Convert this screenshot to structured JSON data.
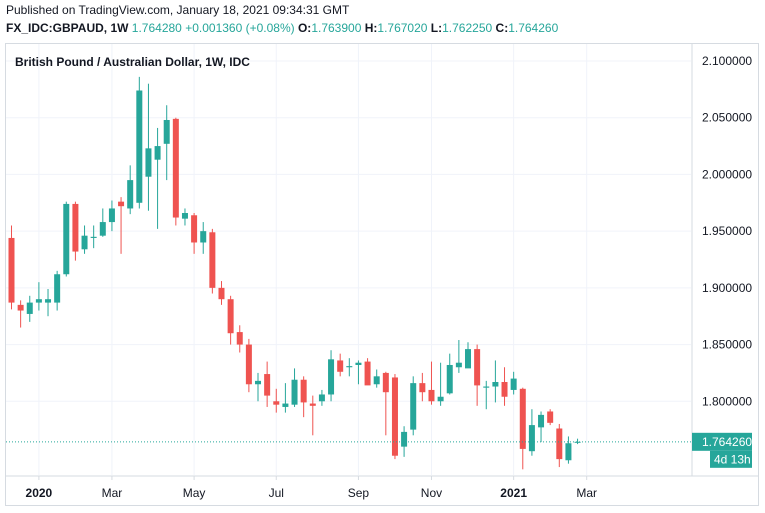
{
  "header": {
    "published": "Published on TradingView.com, January 18, 2021 09:34:31 GMT",
    "symbol": "FX_IDC:GBPAUD, 1W",
    "last": "1.764280",
    "change": "+0.001360 (+0.08%)",
    "open_label": "O:",
    "open": "1.763900",
    "high_label": "H:",
    "high": "1.767020",
    "low_label": "L:",
    "low": "1.762250",
    "close_label": "C:",
    "close": "1.764260"
  },
  "chart_data": {
    "type": "candlestick",
    "title": "British Pound / Australian Dollar, 1W, IDC",
    "ylim": [
      1.735,
      2.115
    ],
    "y_ticks": [
      {
        "v": 2.1,
        "label": "2.100000"
      },
      {
        "v": 2.05,
        "label": "2.050000"
      },
      {
        "v": 2.0,
        "label": "2.000000"
      },
      {
        "v": 1.95,
        "label": "1.950000"
      },
      {
        "v": 1.9,
        "label": "1.900000"
      },
      {
        "v": 1.85,
        "label": "1.850000"
      },
      {
        "v": 1.8,
        "label": "1.800000"
      }
    ],
    "x_ticks": [
      {
        "i": 3,
        "label": "2020",
        "bold": true
      },
      {
        "i": 11,
        "label": "Mar",
        "bold": false
      },
      {
        "i": 20,
        "label": "May",
        "bold": false
      },
      {
        "i": 29,
        "label": "Jul",
        "bold": false
      },
      {
        "i": 38,
        "label": "Sep",
        "bold": false
      },
      {
        "i": 46,
        "label": "Nov",
        "bold": false
      },
      {
        "i": 55,
        "label": "2021",
        "bold": true
      },
      {
        "i": 63,
        "label": "Mar",
        "bold": false
      }
    ],
    "last_price": {
      "value": 1.76426,
      "label": "1.764260",
      "countdown": "4d 13h"
    },
    "colors": {
      "up": "#26a69a",
      "down": "#ef5350",
      "grid": "#f0f3fa"
    },
    "candles": [
      {
        "o": 1.944,
        "h": 1.955,
        "l": 1.881,
        "c": 1.887
      },
      {
        "o": 1.885,
        "h": 1.889,
        "l": 1.865,
        "c": 1.88
      },
      {
        "o": 1.877,
        "h": 1.893,
        "l": 1.87,
        "c": 1.887
      },
      {
        "o": 1.887,
        "h": 1.905,
        "l": 1.88,
        "c": 1.89
      },
      {
        "o": 1.887,
        "h": 1.899,
        "l": 1.875,
        "c": 1.89
      },
      {
        "o": 1.887,
        "h": 1.915,
        "l": 1.88,
        "c": 1.912
      },
      {
        "o": 1.912,
        "h": 1.976,
        "l": 1.91,
        "c": 1.974
      },
      {
        "o": 1.974,
        "h": 1.976,
        "l": 1.924,
        "c": 1.932
      },
      {
        "o": 1.934,
        "h": 1.955,
        "l": 1.93,
        "c": 1.946
      },
      {
        "o": 1.944,
        "h": 1.955,
        "l": 1.935,
        "c": 1.945
      },
      {
        "o": 1.946,
        "h": 1.97,
        "l": 1.945,
        "c": 1.958
      },
      {
        "o": 1.958,
        "h": 1.977,
        "l": 1.95,
        "c": 1.97
      },
      {
        "o": 1.976,
        "h": 1.98,
        "l": 1.93,
        "c": 1.972
      },
      {
        "o": 1.97,
        "h": 2.008,
        "l": 1.965,
        "c": 1.995
      },
      {
        "o": 1.975,
        "h": 2.086,
        "l": 1.97,
        "c": 2.074
      },
      {
        "o": 1.998,
        "h": 2.08,
        "l": 1.968,
        "c": 2.023
      },
      {
        "o": 2.013,
        "h": 2.041,
        "l": 1.952,
        "c": 2.025
      },
      {
        "o": 2.027,
        "h": 2.061,
        "l": 1.995,
        "c": 2.048
      },
      {
        "o": 2.049,
        "h": 2.05,
        "l": 1.955,
        "c": 1.962
      },
      {
        "o": 1.961,
        "h": 1.97,
        "l": 1.955,
        "c": 1.966
      },
      {
        "o": 1.964,
        "h": 1.966,
        "l": 1.93,
        "c": 1.94
      },
      {
        "o": 1.94,
        "h": 1.958,
        "l": 1.93,
        "c": 1.95
      },
      {
        "o": 1.949,
        "h": 1.952,
        "l": 1.895,
        "c": 1.9
      },
      {
        "o": 1.9,
        "h": 1.906,
        "l": 1.885,
        "c": 1.89
      },
      {
        "o": 1.89,
        "h": 1.893,
        "l": 1.85,
        "c": 1.86
      },
      {
        "o": 1.861,
        "h": 1.867,
        "l": 1.843,
        "c": 1.85
      },
      {
        "o": 1.85,
        "h": 1.855,
        "l": 1.808,
        "c": 1.815
      },
      {
        "o": 1.815,
        "h": 1.825,
        "l": 1.8,
        "c": 1.818
      },
      {
        "o": 1.824,
        "h": 1.835,
        "l": 1.795,
        "c": 1.805
      },
      {
        "o": 1.8,
        "h": 1.811,
        "l": 1.79,
        "c": 1.797
      },
      {
        "o": 1.795,
        "h": 1.816,
        "l": 1.79,
        "c": 1.798
      },
      {
        "o": 1.797,
        "h": 1.829,
        "l": 1.795,
        "c": 1.819
      },
      {
        "o": 1.819,
        "h": 1.822,
        "l": 1.786,
        "c": 1.799
      },
      {
        "o": 1.798,
        "h": 1.805,
        "l": 1.77,
        "c": 1.796
      },
      {
        "o": 1.8,
        "h": 1.81,
        "l": 1.796,
        "c": 1.806
      },
      {
        "o": 1.806,
        "h": 1.845,
        "l": 1.8,
        "c": 1.837
      },
      {
        "o": 1.836,
        "h": 1.842,
        "l": 1.822,
        "c": 1.826
      },
      {
        "o": 1.83,
        "h": 1.838,
        "l": 1.822,
        "c": 1.831
      },
      {
        "o": 1.832,
        "h": 1.836,
        "l": 1.815,
        "c": 1.834
      },
      {
        "o": 1.835,
        "h": 1.838,
        "l": 1.817,
        "c": 1.814
      },
      {
        "o": 1.815,
        "h": 1.828,
        "l": 1.812,
        "c": 1.822
      },
      {
        "o": 1.825,
        "h": 1.826,
        "l": 1.77,
        "c": 1.808
      },
      {
        "o": 1.821,
        "h": 1.824,
        "l": 1.749,
        "c": 1.752
      },
      {
        "o": 1.76,
        "h": 1.778,
        "l": 1.751,
        "c": 1.773
      },
      {
        "o": 1.775,
        "h": 1.822,
        "l": 1.77,
        "c": 1.816
      },
      {
        "o": 1.816,
        "h": 1.825,
        "l": 1.8,
        "c": 1.808
      },
      {
        "o": 1.81,
        "h": 1.835,
        "l": 1.797,
        "c": 1.8
      },
      {
        "o": 1.8,
        "h": 1.834,
        "l": 1.796,
        "c": 1.804
      },
      {
        "o": 1.807,
        "h": 1.842,
        "l": 1.806,
        "c": 1.832
      },
      {
        "o": 1.83,
        "h": 1.854,
        "l": 1.825,
        "c": 1.834
      },
      {
        "o": 1.829,
        "h": 1.852,
        "l": 1.83,
        "c": 1.846
      },
      {
        "o": 1.846,
        "h": 1.85,
        "l": 1.796,
        "c": 1.814
      },
      {
        "o": 1.812,
        "h": 1.818,
        "l": 1.793,
        "c": 1.813
      },
      {
        "o": 1.813,
        "h": 1.836,
        "l": 1.799,
        "c": 1.817
      },
      {
        "o": 1.817,
        "h": 1.83,
        "l": 1.796,
        "c": 1.804
      },
      {
        "o": 1.81,
        "h": 1.826,
        "l": 1.806,
        "c": 1.82
      },
      {
        "o": 1.811,
        "h": 1.812,
        "l": 1.74,
        "c": 1.758
      },
      {
        "o": 1.756,
        "h": 1.793,
        "l": 1.752,
        "c": 1.779
      },
      {
        "o": 1.777,
        "h": 1.791,
        "l": 1.764,
        "c": 1.788
      },
      {
        "o": 1.791,
        "h": 1.793,
        "l": 1.779,
        "c": 1.781
      },
      {
        "o": 1.776,
        "h": 1.78,
        "l": 1.742,
        "c": 1.749
      },
      {
        "o": 1.748,
        "h": 1.769,
        "l": 1.745,
        "c": 1.763
      },
      {
        "o": 1.7639,
        "h": 1.76702,
        "l": 1.76225,
        "c": 1.76426
      }
    ]
  }
}
